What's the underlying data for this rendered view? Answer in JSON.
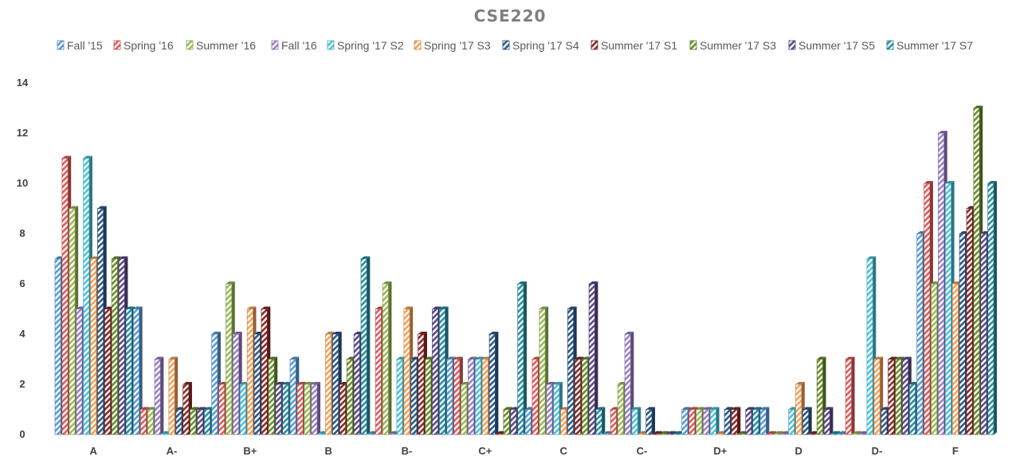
{
  "chart_data": {
    "type": "bar",
    "title": "CSE220",
    "xlabel": "",
    "ylabel": "",
    "ylim": [
      0,
      14
    ],
    "y_ticks": [
      "0",
      "2",
      "4",
      "6",
      "8",
      "10",
      "12",
      "14"
    ],
    "legend_position": "top",
    "grid": false,
    "categories": [
      "A",
      "A-",
      "B+",
      "B",
      "B-",
      "C+",
      "C",
      "C-",
      "D+",
      "D",
      "D-",
      "F"
    ],
    "series": [
      {
        "name": "Fall '15",
        "color": "#5b9bd5",
        "values": [
          7,
          5,
          4,
          3,
          0,
          3,
          1,
          0,
          1,
          1,
          0,
          8
        ]
      },
      {
        "name": "Spring '16",
        "color": "#e05c5c",
        "values": [
          11,
          1,
          2,
          2,
          5,
          3,
          3,
          1,
          1,
          0,
          3,
          10
        ]
      },
      {
        "name": "Summer '16",
        "color": "#9bbb59",
        "values": [
          9,
          1,
          6,
          2,
          6,
          2,
          5,
          2,
          1,
          0,
          0,
          6
        ]
      },
      {
        "name": "Fall '16",
        "color": "#9b7fc7",
        "values": [
          5,
          3,
          4,
          2,
          0,
          3,
          2,
          4,
          1,
          0,
          0,
          12
        ]
      },
      {
        "name": "Spring '17 S2",
        "color": "#4bc2d8",
        "values": [
          11,
          0,
          2,
          0,
          3,
          3,
          2,
          1,
          1,
          1,
          7,
          10
        ]
      },
      {
        "name": "Spring '17 S3",
        "color": "#f5a05a",
        "values": [
          7,
          3,
          5,
          4,
          5,
          3,
          1,
          0,
          0,
          2,
          3,
          6
        ]
      },
      {
        "name": "Spring '17 S4",
        "color": "#2e5b8c",
        "values": [
          9,
          1,
          4,
          4,
          3,
          4,
          5,
          1,
          1,
          1,
          1,
          8
        ]
      },
      {
        "name": "Summer '17 S1",
        "color": "#8c2a2a",
        "values": [
          5,
          2,
          5,
          2,
          4,
          0,
          3,
          0,
          1,
          0,
          3,
          9
        ]
      },
      {
        "name": "Summer '17 S3",
        "color": "#6b8e2e",
        "values": [
          7,
          1,
          3,
          3,
          3,
          1,
          3,
          0,
          0,
          3,
          3,
          13
        ]
      },
      {
        "name": "Summer '17 S5",
        "color": "#5e4b8a",
        "values": [
          7,
          1,
          2,
          4,
          5,
          1,
          6,
          0,
          1,
          1,
          3,
          8
        ]
      },
      {
        "name": "Summer '17 S7",
        "color": "#2a8fa3",
        "values": [
          5,
          1,
          2,
          7,
          5,
          6,
          1,
          0,
          1,
          0,
          2,
          10
        ]
      }
    ]
  }
}
